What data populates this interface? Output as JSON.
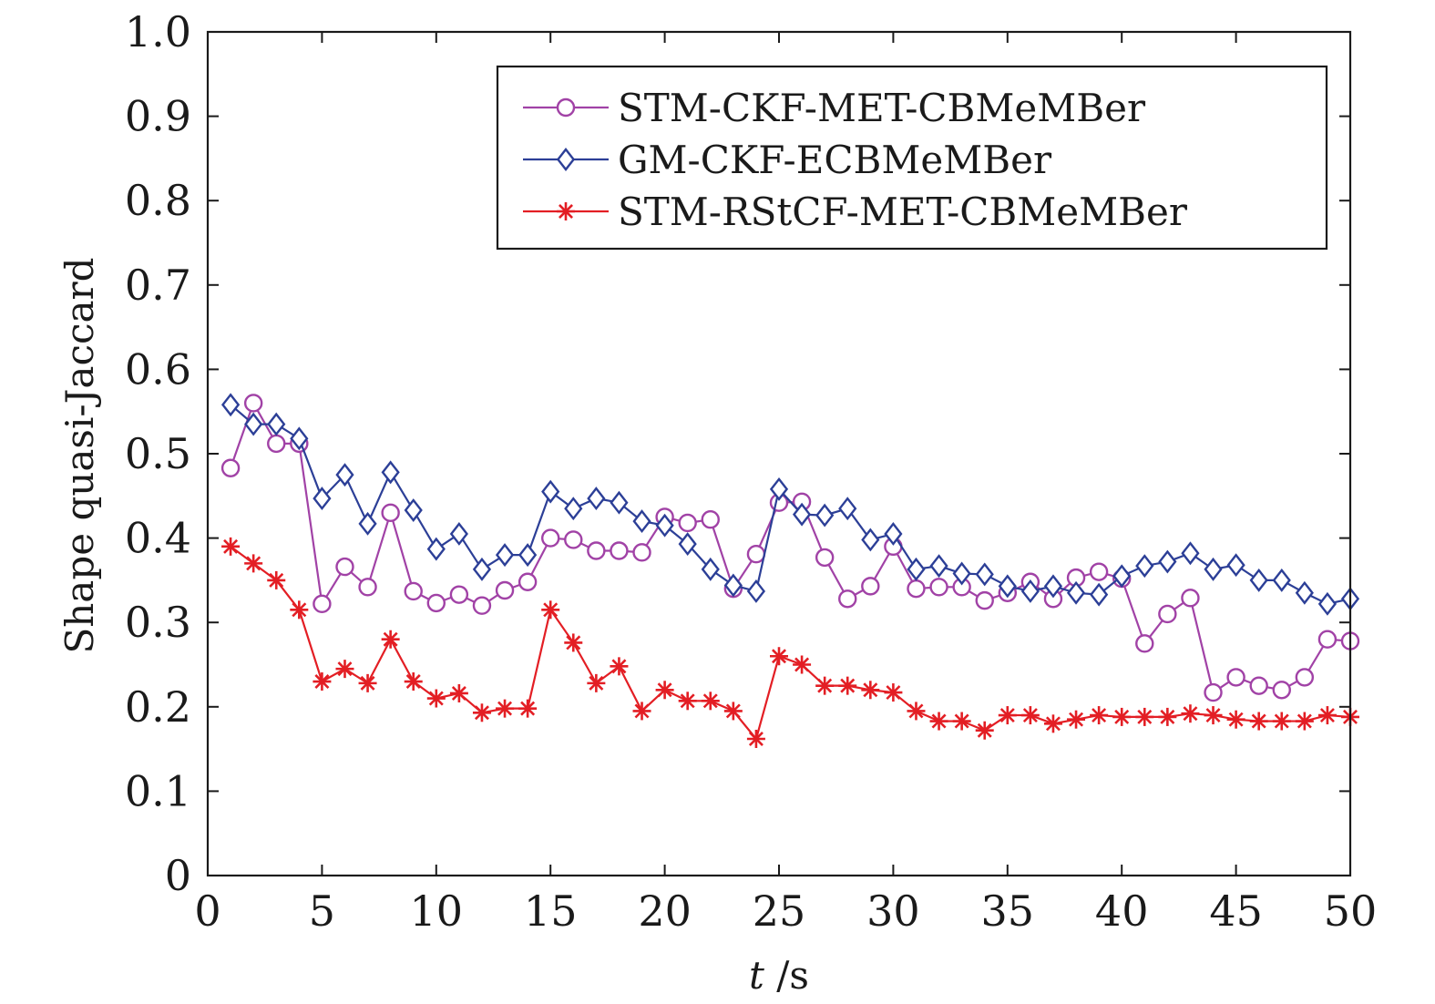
{
  "chart_data": {
    "type": "line",
    "xlabel_var": "t",
    "xlabel_unit": " /s",
    "ylabel": "Shape quasi-Jaccard",
    "xlim": [
      0,
      50
    ],
    "ylim": [
      0,
      1.0
    ],
    "xticks": [
      0,
      5,
      10,
      15,
      20,
      25,
      30,
      35,
      40,
      45,
      50
    ],
    "yticks": [
      "0",
      "0.1",
      "0.2",
      "0.3",
      "0.4",
      "0.5",
      "0.6",
      "0.7",
      "0.8",
      "0.9",
      "1.0"
    ],
    "grid": false,
    "legend_position": "top-right",
    "x": [
      1,
      2,
      3,
      4,
      5,
      6,
      7,
      8,
      9,
      10,
      11,
      12,
      13,
      14,
      15,
      16,
      17,
      18,
      19,
      20,
      21,
      22,
      23,
      24,
      25,
      26,
      27,
      28,
      29,
      30,
      31,
      32,
      33,
      34,
      35,
      36,
      37,
      38,
      39,
      40,
      41,
      42,
      43,
      44,
      45,
      46,
      47,
      48,
      49,
      50
    ],
    "series": [
      {
        "name": "STM-CKF-MET-CBMeMBer",
        "color": "#a142a6",
        "marker": "circle",
        "values": [
          0.483,
          0.56,
          0.512,
          0.512,
          0.322,
          0.366,
          0.342,
          0.43,
          0.337,
          0.323,
          0.333,
          0.32,
          0.338,
          0.348,
          0.4,
          0.398,
          0.385,
          0.385,
          0.383,
          0.425,
          0.418,
          0.422,
          0.34,
          0.381,
          0.442,
          0.443,
          0.377,
          0.328,
          0.343,
          0.39,
          0.34,
          0.342,
          0.342,
          0.326,
          0.335,
          0.348,
          0.328,
          0.353,
          0.36,
          0.352,
          0.275,
          0.31,
          0.329,
          0.217,
          0.235,
          0.225,
          0.22,
          0.235,
          0.28,
          0.278
        ]
      },
      {
        "name": "GM-CKF-ECBMeMBer",
        "color": "#2c3f97",
        "marker": "diamond",
        "values": [
          0.558,
          0.535,
          0.535,
          0.518,
          0.447,
          0.475,
          0.417,
          0.478,
          0.433,
          0.387,
          0.405,
          0.363,
          0.38,
          0.38,
          0.455,
          0.435,
          0.447,
          0.442,
          0.42,
          0.415,
          0.393,
          0.363,
          0.344,
          0.337,
          0.458,
          0.428,
          0.427,
          0.435,
          0.398,
          0.405,
          0.363,
          0.367,
          0.358,
          0.357,
          0.343,
          0.337,
          0.343,
          0.335,
          0.333,
          0.355,
          0.367,
          0.372,
          0.382,
          0.363,
          0.368,
          0.35,
          0.35,
          0.335,
          0.322,
          0.328
        ]
      },
      {
        "name": "STM-RStCF-MET-CBMeMBer",
        "color": "#e31e24",
        "marker": "asterisk",
        "values": [
          0.39,
          0.37,
          0.35,
          0.315,
          0.23,
          0.245,
          0.228,
          0.28,
          0.23,
          0.21,
          0.216,
          0.193,
          0.198,
          0.198,
          0.315,
          0.276,
          0.228,
          0.248,
          0.195,
          0.22,
          0.207,
          0.207,
          0.195,
          0.162,
          0.26,
          0.25,
          0.225,
          0.225,
          0.22,
          0.217,
          0.195,
          0.183,
          0.183,
          0.172,
          0.19,
          0.19,
          0.18,
          0.185,
          0.19,
          0.188,
          0.188,
          0.188,
          0.192,
          0.19,
          0.185,
          0.183,
          0.183,
          0.183,
          0.19,
          0.188
        ]
      }
    ]
  }
}
